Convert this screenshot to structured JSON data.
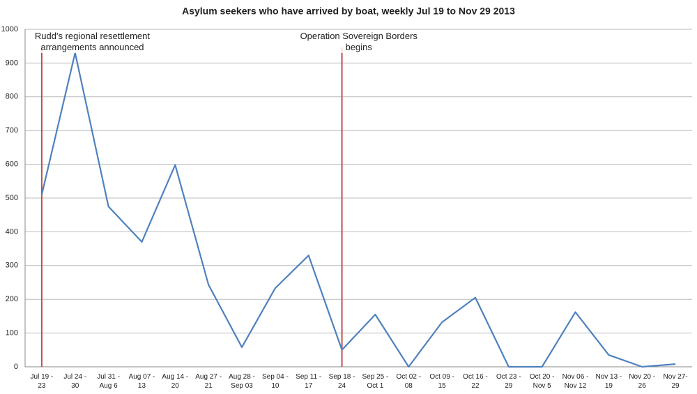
{
  "chart_data": {
    "type": "line",
    "title": "Asylum seekers who have arrived by boat, weekly Jul 19 to Nov 29 2013",
    "categories": [
      "Jul 19 -\n23",
      "Jul 24 -\n30",
      "Jul 31 -\nAug 6",
      "Aug 07 -\n13",
      "Aug 14 -\n20",
      "Aug 27 -\n21",
      "Aug 28 -\nSep 03",
      "Sep 04 -\n10",
      "Sep 11 -\n17",
      "Sep 18 -\n24",
      "Sep 25 -\nOct 1",
      "Oct 02 -\n08",
      "Oct 09 -\n15",
      "Oct 16 -\n22",
      "Oct 23 -\n29",
      "Oct 20 -\nNov 5",
      "Nov 06 -\nNov 12",
      "Nov 13 -\n19",
      "Nov 20 -\n26",
      "Nov 27-\n29"
    ],
    "values": [
      510,
      930,
      475,
      370,
      598,
      243,
      58,
      233,
      330,
      50,
      155,
      0,
      132,
      205,
      0,
      0,
      162,
      35,
      0,
      8
    ],
    "color": "#4f81bd",
    "ylim": [
      0,
      1000
    ],
    "yticks": [
      0,
      100,
      200,
      300,
      400,
      500,
      600,
      700,
      800,
      900,
      1000
    ],
    "grid": true,
    "annotations": [
      {
        "text": "Rudd's regional resettlement\narrangements announced",
        "category": "Jul 19 -\n23",
        "color": "#c0504d"
      },
      {
        "text": "Operation Sovereign Borders\nbegins",
        "category": "Sep 18 -\n24",
        "color": "#c0504d"
      }
    ]
  }
}
